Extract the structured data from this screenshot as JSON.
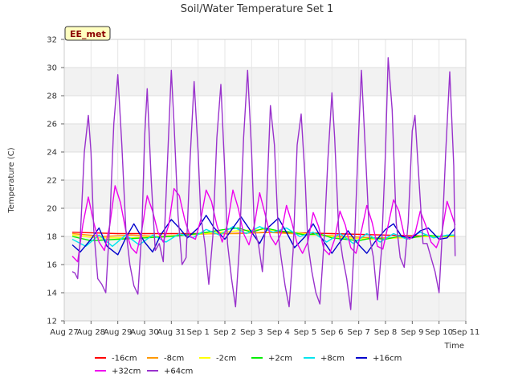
{
  "chart_data": {
    "type": "line",
    "title": "Soil/Water Temperature Set 1",
    "xlabel": "Time",
    "ylabel": "Temperature (C)",
    "site_tag": "EE_met",
    "ylim": [
      12,
      32
    ],
    "yticks": [
      12,
      14,
      16,
      18,
      20,
      22,
      24,
      26,
      28,
      30,
      32
    ],
    "xlim": [
      0,
      15
    ],
    "xticks": [
      {
        "v": 0,
        "label": "Aug 27"
      },
      {
        "v": 1,
        "label": "Aug 28"
      },
      {
        "v": 2,
        "label": "Aug 29"
      },
      {
        "v": 3,
        "label": "Aug 30"
      },
      {
        "v": 4,
        "label": "Aug 31"
      },
      {
        "v": 5,
        "label": "Sep 1"
      },
      {
        "v": 6,
        "label": "Sep 2"
      },
      {
        "v": 7,
        "label": "Sep 3"
      },
      {
        "v": 8,
        "label": "Sep 4"
      },
      {
        "v": 9,
        "label": "Sep 5"
      },
      {
        "v": 10,
        "label": "Sep 6"
      },
      {
        "v": 11,
        "label": "Sep 7"
      },
      {
        "v": 12,
        "label": "Sep 8"
      },
      {
        "v": 13,
        "label": "Sep 9"
      },
      {
        "v": 14,
        "label": "Sep 10"
      },
      {
        "v": 15,
        "label": "Sep 11"
      }
    ],
    "grid": true,
    "legend_position": "bottom",
    "series": [
      {
        "name": "-16cm",
        "color": "#ff0000",
        "x": [
          0.3,
          2,
          4,
          6,
          8,
          10,
          12,
          14,
          14.6
        ],
        "y": [
          18.3,
          18.2,
          18.2,
          18.2,
          18.3,
          18.2,
          18.1,
          18.0,
          18.0
        ]
      },
      {
        "name": "-8cm",
        "color": "#ff9900",
        "x": [
          0.3,
          1.5,
          2.5,
          3.5,
          4.5,
          5.5,
          6.5,
          7.5,
          8.5,
          9.5,
          10.5,
          11.5,
          12.5,
          13.5,
          14.6
        ],
        "y": [
          18.2,
          18.0,
          18.1,
          18.0,
          18.1,
          18.2,
          18.2,
          18.3,
          18.2,
          18.1,
          18.0,
          17.9,
          17.9,
          18.0,
          18.0
        ]
      },
      {
        "name": "-2cm",
        "color": "#ffff00",
        "x": [
          0.3,
          1.2,
          2.5,
          3.8,
          5.2,
          6.5,
          7.5,
          8.5,
          9.5,
          10.5,
          11.5,
          12.5,
          13.5,
          14.6
        ],
        "y": [
          18.1,
          17.9,
          17.9,
          18.0,
          18.2,
          18.4,
          18.5,
          18.3,
          18.1,
          17.9,
          17.8,
          17.9,
          18.0,
          18.0
        ]
      },
      {
        "name": "+2cm",
        "color": "#00ee00",
        "x": [
          0.3,
          1,
          2,
          3,
          4,
          5,
          6,
          6.5,
          7,
          7.5,
          8,
          8.5,
          9,
          9.5,
          10,
          10.5,
          11,
          11.5,
          12,
          12.5,
          13,
          13.5,
          14,
          14.6
        ],
        "y": [
          18.0,
          17.7,
          17.8,
          17.9,
          18.0,
          18.2,
          18.5,
          18.6,
          18.3,
          18.6,
          18.4,
          18.3,
          18.1,
          18.2,
          17.9,
          17.8,
          17.7,
          17.9,
          17.8,
          18.0,
          17.9,
          18.1,
          18.0,
          18.1
        ]
      },
      {
        "name": "+8cm",
        "color": "#00e5ee",
        "x": [
          0.3,
          0.8,
          1.3,
          1.8,
          2.3,
          2.8,
          3.3,
          3.8,
          4.3,
          4.8,
          5.3,
          5.8,
          6.3,
          6.8,
          7.3,
          7.8,
          8.3,
          8.8,
          9.3,
          9.8,
          10.3,
          10.8,
          11.3,
          11.8,
          12.3,
          12.8,
          13.3,
          13.8,
          14.3,
          14.6
        ],
        "y": [
          17.8,
          17.3,
          18.1,
          17.3,
          18.1,
          17.4,
          18.1,
          17.6,
          18.2,
          17.9,
          18.5,
          18.1,
          18.7,
          18.2,
          18.7,
          18.3,
          18.6,
          18.0,
          18.3,
          17.6,
          18.2,
          17.5,
          18.2,
          17.6,
          18.2,
          17.8,
          18.3,
          17.9,
          18.1,
          18.1
        ]
      },
      {
        "name": "+16cm",
        "color": "#0000cc",
        "x": [
          0.3,
          0.6,
          1,
          1.3,
          1.6,
          2,
          2.3,
          2.6,
          3,
          3.3,
          3.6,
          4,
          4.3,
          4.6,
          5,
          5.3,
          5.6,
          6,
          6.3,
          6.6,
          7,
          7.3,
          7.6,
          8,
          8.3,
          8.6,
          9,
          9.3,
          9.6,
          10,
          10.3,
          10.6,
          11,
          11.3,
          11.6,
          12,
          12.3,
          12.6,
          13,
          13.3,
          13.6,
          14,
          14.3,
          14.6
        ],
        "y": [
          17.4,
          16.9,
          17.8,
          18.6,
          17.3,
          16.7,
          17.9,
          18.9,
          17.6,
          16.9,
          18.1,
          19.2,
          18.6,
          17.9,
          18.6,
          19.5,
          18.6,
          17.8,
          18.6,
          19.4,
          18.3,
          17.5,
          18.6,
          19.3,
          18.3,
          17.2,
          18.0,
          18.9,
          17.9,
          16.8,
          17.6,
          18.4,
          17.4,
          16.8,
          17.6,
          18.5,
          18.9,
          18.0,
          17.9,
          18.4,
          18.6,
          17.8,
          17.9,
          18.6
        ]
      },
      {
        "name": "+32cm",
        "color": "#ee00ee",
        "x": [
          0.3,
          0.5,
          0.7,
          0.9,
          1.1,
          1.3,
          1.5,
          1.7,
          1.9,
          2.1,
          2.3,
          2.5,
          2.7,
          2.9,
          3.1,
          3.3,
          3.5,
          3.7,
          3.9,
          4.1,
          4.3,
          4.5,
          4.7,
          4.9,
          5.1,
          5.3,
          5.5,
          5.7,
          5.9,
          6.1,
          6.3,
          6.5,
          6.7,
          6.9,
          7.1,
          7.3,
          7.5,
          7.7,
          7.9,
          8.1,
          8.3,
          8.5,
          8.7,
          8.9,
          9.1,
          9.3,
          9.5,
          9.7,
          9.9,
          10.1,
          10.3,
          10.5,
          10.7,
          10.9,
          11.1,
          11.3,
          11.5,
          11.7,
          11.9,
          12.1,
          12.3,
          12.5,
          12.7,
          12.9,
          13.1,
          13.3,
          13.5,
          13.7,
          13.9,
          14.1,
          14.3,
          14.5,
          14.6
        ],
        "y": [
          16.6,
          16.2,
          18.9,
          20.8,
          19.0,
          17.6,
          17.0,
          18.8,
          21.6,
          20.4,
          18.4,
          17.2,
          16.8,
          18.5,
          20.9,
          19.8,
          18.3,
          17.6,
          18.8,
          21.4,
          20.9,
          19.2,
          18.0,
          17.8,
          19.2,
          21.3,
          20.5,
          18.8,
          17.6,
          18.9,
          21.3,
          20.0,
          18.2,
          17.4,
          18.8,
          21.1,
          19.6,
          18.0,
          17.4,
          18.2,
          20.2,
          19.0,
          17.5,
          16.8,
          17.6,
          19.7,
          18.7,
          17.1,
          16.7,
          17.8,
          19.8,
          18.8,
          17.2,
          16.8,
          18.4,
          20.2,
          19.0,
          17.3,
          17.1,
          18.8,
          20.6,
          19.8,
          18.1,
          17.8,
          18.2,
          19.8,
          18.8,
          17.6,
          17.2,
          18.2,
          20.5,
          19.4,
          18.8
        ]
      },
      {
        "name": "+64cm",
        "color": "#9932cc",
        "x": [
          0.3,
          0.4,
          0.5,
          0.6,
          0.75,
          0.9,
          1.0,
          1.1,
          1.25,
          1.4,
          1.55,
          1.7,
          1.85,
          2.0,
          2.15,
          2.3,
          2.45,
          2.6,
          2.75,
          2.9,
          3.0,
          3.1,
          3.25,
          3.4,
          3.55,
          3.7,
          3.85,
          4.0,
          4.1,
          4.25,
          4.4,
          4.55,
          4.7,
          4.85,
          5.0,
          5.1,
          5.25,
          5.4,
          5.55,
          5.7,
          5.85,
          6.0,
          6.1,
          6.25,
          6.4,
          6.55,
          6.7,
          6.85,
          7.0,
          7.1,
          7.25,
          7.4,
          7.55,
          7.7,
          7.85,
          8.0,
          8.1,
          8.25,
          8.4,
          8.55,
          8.7,
          8.85,
          9.0,
          9.1,
          9.25,
          9.4,
          9.55,
          9.7,
          9.85,
          10.0,
          10.1,
          10.25,
          10.4,
          10.55,
          10.7,
          10.85,
          11.0,
          11.1,
          11.25,
          11.4,
          11.55,
          11.7,
          11.85,
          12.0,
          12.1,
          12.25,
          12.4,
          12.55,
          12.7,
          12.85,
          13.0,
          13.1,
          13.25,
          13.4,
          13.55,
          13.7,
          13.85,
          14.0,
          14.1,
          14.25,
          14.4,
          14.55,
          14.6
        ],
        "y": [
          15.5,
          15.4,
          15.0,
          18.0,
          24.0,
          26.6,
          24.0,
          18.5,
          15.0,
          14.6,
          14.0,
          19.0,
          26.0,
          29.5,
          24.5,
          18.5,
          16.0,
          14.5,
          13.9,
          18.5,
          25.0,
          28.5,
          22.0,
          17.0,
          17.5,
          16.2,
          23.0,
          29.8,
          26.0,
          19.5,
          16.0,
          16.5,
          23.5,
          29.0,
          24.0,
          19.5,
          17.5,
          14.6,
          18.0,
          25.0,
          28.8,
          22.5,
          17.5,
          15.0,
          13.0,
          17.5,
          25.0,
          29.8,
          24.0,
          18.5,
          17.5,
          15.5,
          20.0,
          27.3,
          24.5,
          18.0,
          16.5,
          14.5,
          13.0,
          17.0,
          24.5,
          26.7,
          22.0,
          17.5,
          15.5,
          14.0,
          13.2,
          17.5,
          23.5,
          28.2,
          25.0,
          18.5,
          16.5,
          15.0,
          12.8,
          18.0,
          25.5,
          29.8,
          24.0,
          18.0,
          16.5,
          13.5,
          17.0,
          24.0,
          30.7,
          27.0,
          19.0,
          16.5,
          15.8,
          19.0,
          25.5,
          26.6,
          22.0,
          17.5,
          17.5,
          16.5,
          15.5,
          14.0,
          17.5,
          24.0,
          29.7,
          23.0,
          16.6
        ]
      }
    ]
  }
}
